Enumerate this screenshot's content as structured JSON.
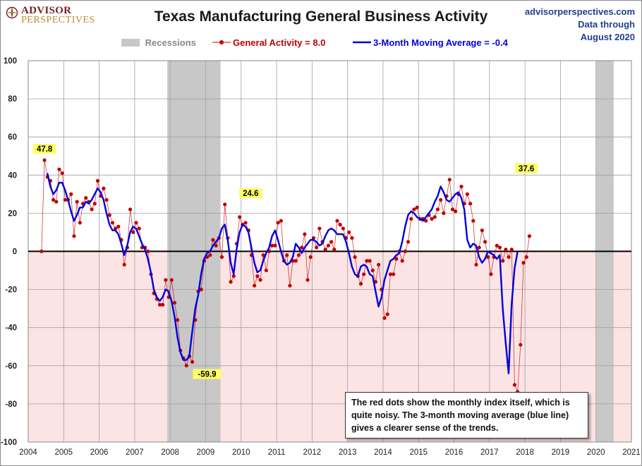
{
  "header": {
    "title": "Texas Manufacturing General Business Activity",
    "logo_line1": "ADVISOR",
    "logo_line2": "PERSPECTIVES",
    "source_line1": "advisorperspectives.com",
    "source_line2": "Data through",
    "source_line3": "August 2020"
  },
  "legend": {
    "recessions": "Recessions",
    "general": "General Activity = 8.0",
    "average": "3-Month Moving Average = -0.4"
  },
  "note": "The red dots show the monthly  index itself, which is quite noisy. The 3-month moving average (blue line) gives a clearer sense of the trends.",
  "colors": {
    "general": "#c00000",
    "average": "#0000e0",
    "recession": "#c8c8c8",
    "negative_zone": "#fce4e4",
    "grid": "#a0a0a0"
  },
  "chart_data": {
    "type": "line",
    "title": "Texas Manufacturing General Business Activity",
    "xlim": [
      2004,
      2021
    ],
    "ylim": [
      -100,
      100
    ],
    "x_ticks": [
      "2004",
      "2005",
      "2006",
      "2007",
      "2008",
      "2009",
      "2010",
      "2011",
      "2012",
      "2013",
      "2014",
      "2015",
      "2016",
      "2017",
      "2018",
      "2019",
      "2020",
      "2021"
    ],
    "y_ticks": [
      "100",
      "80",
      "60",
      "40",
      "20",
      "0",
      "-20",
      "-40",
      "-60",
      "-80",
      "-100"
    ],
    "recessions": [
      [
        2007.92,
        2009.42
      ],
      [
        2020.0,
        2020.5
      ]
    ],
    "zero_line": 0,
    "start": 2004.375,
    "step": 0.0833333,
    "series": [
      {
        "name": "General Activity",
        "marker": "dot",
        "values": [
          0,
          47.8,
          39,
          37,
          27,
          26,
          43,
          41,
          27,
          27,
          30,
          8,
          26,
          15,
          25,
          28,
          26,
          22,
          25,
          37,
          29,
          33,
          27,
          19,
          15,
          12,
          13,
          6,
          -7,
          2,
          22,
          10,
          15,
          12,
          2,
          2,
          0,
          -12,
          -22,
          -25,
          -28,
          -28,
          -15,
          -24,
          -15,
          -27,
          -36,
          -52,
          -56,
          -59.9,
          -55,
          -58,
          -36,
          -21,
          -20,
          -5,
          -3,
          -2,
          6,
          3,
          7,
          -3,
          24.6,
          7,
          -16,
          -13,
          4,
          18,
          14,
          15,
          11,
          -2,
          -18,
          -13,
          -15,
          -2,
          -10,
          0,
          3,
          3,
          15,
          16,
          -5,
          -2,
          -18,
          -5,
          -5,
          -2,
          2,
          9,
          -15,
          -3,
          7,
          2,
          12,
          5,
          1,
          3,
          5,
          1,
          16,
          14,
          12,
          7,
          10,
          7,
          -3,
          -13,
          -17,
          -12,
          -5,
          -5,
          -10,
          -16,
          -7,
          -20,
          -35,
          -33,
          -12,
          -12,
          -4,
          0,
          -5,
          0,
          5,
          17,
          22,
          23,
          17,
          17,
          16,
          19,
          17,
          18,
          22,
          27,
          20,
          29,
          37.6,
          22,
          21,
          30,
          34,
          25,
          30,
          25,
          16,
          -7,
          2,
          11,
          5,
          -3,
          -12,
          -3,
          3,
          2,
          -5,
          1,
          -3,
          1,
          -70,
          -73.7,
          -49,
          -6,
          -3,
          8
        ]
      },
      {
        "name": "3-Month Moving Average",
        "start": 2004.54,
        "values": [
          41,
          34,
          30,
          32,
          36,
          36,
          32,
          27,
          21,
          16,
          19,
          23,
          23,
          26,
          25,
          27,
          30,
          33,
          31,
          27,
          20,
          14,
          11,
          11,
          9,
          4,
          -2,
          3,
          10,
          13,
          12,
          8,
          4,
          1,
          -4,
          -11,
          -20,
          -24,
          -26,
          -24,
          -20,
          -21,
          -26,
          -34,
          -45,
          -53,
          -57,
          -57,
          -55,
          -42,
          -30,
          -23,
          -12,
          -4,
          -1,
          0,
          3,
          5,
          7,
          12,
          14,
          6,
          -6,
          -12,
          1,
          10,
          14,
          13,
          10,
          2,
          -6,
          -11,
          -10,
          -5,
          -1,
          2,
          8,
          11,
          6,
          0,
          -5,
          -7,
          -6,
          -3,
          4,
          2,
          -1,
          2,
          4,
          6,
          6,
          5,
          3,
          4,
          8,
          11,
          12,
          11,
          9,
          9,
          9,
          5,
          -1,
          -8,
          -12,
          -13,
          -8,
          -7,
          -8,
          -12,
          -13,
          -21,
          -29,
          -24,
          -15,
          -10,
          -5,
          -4,
          -2,
          -1,
          5,
          13,
          19,
          21,
          20,
          18,
          17,
          16,
          18,
          20,
          22,
          26,
          29,
          34,
          31,
          27,
          26,
          28,
          30,
          31,
          28,
          22,
          6,
          2,
          4,
          3,
          -3,
          -6,
          -4,
          0,
          -1,
          -2,
          -4,
          -2,
          -30,
          -48,
          -64,
          -28,
          -9,
          -0.4
        ]
      }
    ],
    "annotations": [
      {
        "x": 2004.46,
        "y": 47.8,
        "text": "47.8"
      },
      {
        "x": 2010.27,
        "y": 24.6,
        "text": "24.6"
      },
      {
        "x": 2018.04,
        "y": 37.6,
        "text": "37.6"
      },
      {
        "x": 2009.04,
        "y": -59.9,
        "text": "-59.9"
      }
    ]
  }
}
